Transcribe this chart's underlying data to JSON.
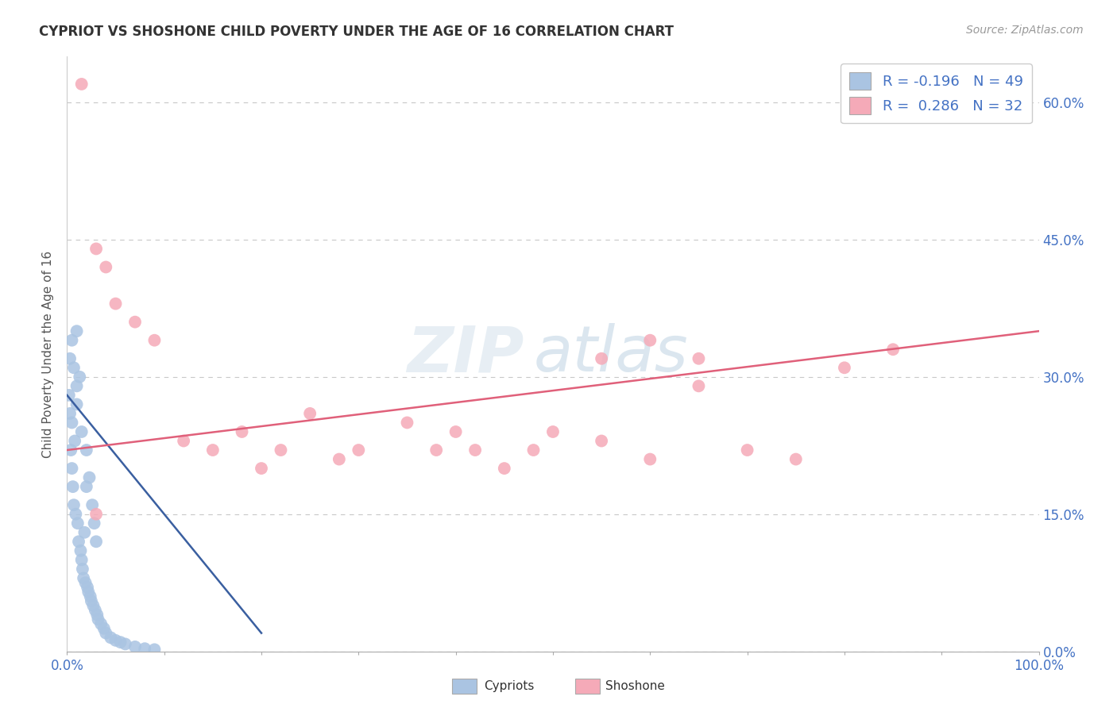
{
  "title": "CYPRIOT VS SHOSHONE CHILD POVERTY UNDER THE AGE OF 16 CORRELATION CHART",
  "source": "Source: ZipAtlas.com",
  "ylabel": "Child Poverty Under the Age of 16",
  "xlim": [
    0,
    100
  ],
  "ylim": [
    0,
    65
  ],
  "yticks": [
    0,
    15,
    30,
    45,
    60
  ],
  "ytick_labels": [
    "0.0%",
    "15.0%",
    "30.0%",
    "45.0%",
    "60.0%"
  ],
  "cypriot_color": "#aac4e2",
  "shoshone_color": "#f5aab8",
  "cypriot_line_color": "#3a5fa0",
  "shoshone_line_color": "#e0607a",
  "cypriot_R": -0.196,
  "cypriot_N": 49,
  "shoshone_R": 0.286,
  "shoshone_N": 32,
  "background_color": "#ffffff",
  "grid_color": "#c8c8c8",
  "watermark": "ZIPatlas",
  "cypriot_x": [
    0.2,
    0.3,
    0.4,
    0.5,
    0.5,
    0.6,
    0.7,
    0.8,
    0.9,
    1.0,
    1.0,
    1.1,
    1.2,
    1.3,
    1.4,
    1.5,
    1.5,
    1.6,
    1.7,
    1.8,
    1.9,
    2.0,
    2.0,
    2.1,
    2.2,
    2.3,
    2.4,
    2.5,
    2.6,
    2.7,
    2.8,
    2.9,
    3.0,
    3.1,
    3.2,
    3.5,
    3.8,
    4.0,
    4.5,
    5.0,
    5.5,
    6.0,
    7.0,
    8.0,
    9.0,
    0.3,
    0.5,
    0.7,
    1.0
  ],
  "cypriot_y": [
    28.0,
    26.0,
    22.0,
    20.0,
    25.0,
    18.0,
    16.0,
    23.0,
    15.0,
    27.0,
    29.0,
    14.0,
    12.0,
    30.0,
    11.0,
    10.0,
    24.0,
    9.0,
    8.0,
    13.0,
    7.5,
    18.0,
    22.0,
    7.0,
    6.5,
    19.0,
    6.0,
    5.5,
    16.0,
    5.0,
    14.0,
    4.5,
    12.0,
    4.0,
    3.5,
    3.0,
    2.5,
    2.0,
    1.5,
    1.2,
    1.0,
    0.8,
    0.5,
    0.3,
    0.2,
    32.0,
    34.0,
    31.0,
    35.0
  ],
  "shoshone_x": [
    1.5,
    3.0,
    4.0,
    5.0,
    7.0,
    9.0,
    12.0,
    15.0,
    18.0,
    20.0,
    22.0,
    25.0,
    28.0,
    30.0,
    35.0,
    38.0,
    40.0,
    42.0,
    45.0,
    48.0,
    50.0,
    55.0,
    60.0,
    65.0,
    70.0,
    75.0,
    80.0,
    85.0,
    55.0,
    60.0,
    65.0,
    3.0
  ],
  "shoshone_y": [
    62.0,
    44.0,
    42.0,
    38.0,
    36.0,
    34.0,
    23.0,
    22.0,
    24.0,
    20.0,
    22.0,
    26.0,
    21.0,
    22.0,
    25.0,
    22.0,
    24.0,
    22.0,
    20.0,
    22.0,
    24.0,
    23.0,
    21.0,
    29.0,
    22.0,
    21.0,
    31.0,
    33.0,
    32.0,
    34.0,
    32.0,
    15.0
  ],
  "cypriot_trendline_x": [
    0.0,
    20.0
  ],
  "cypriot_trendline_y": [
    28.0,
    2.0
  ],
  "shoshone_trendline_x": [
    0.0,
    100.0
  ],
  "shoshone_trendline_y": [
    22.0,
    35.0
  ]
}
